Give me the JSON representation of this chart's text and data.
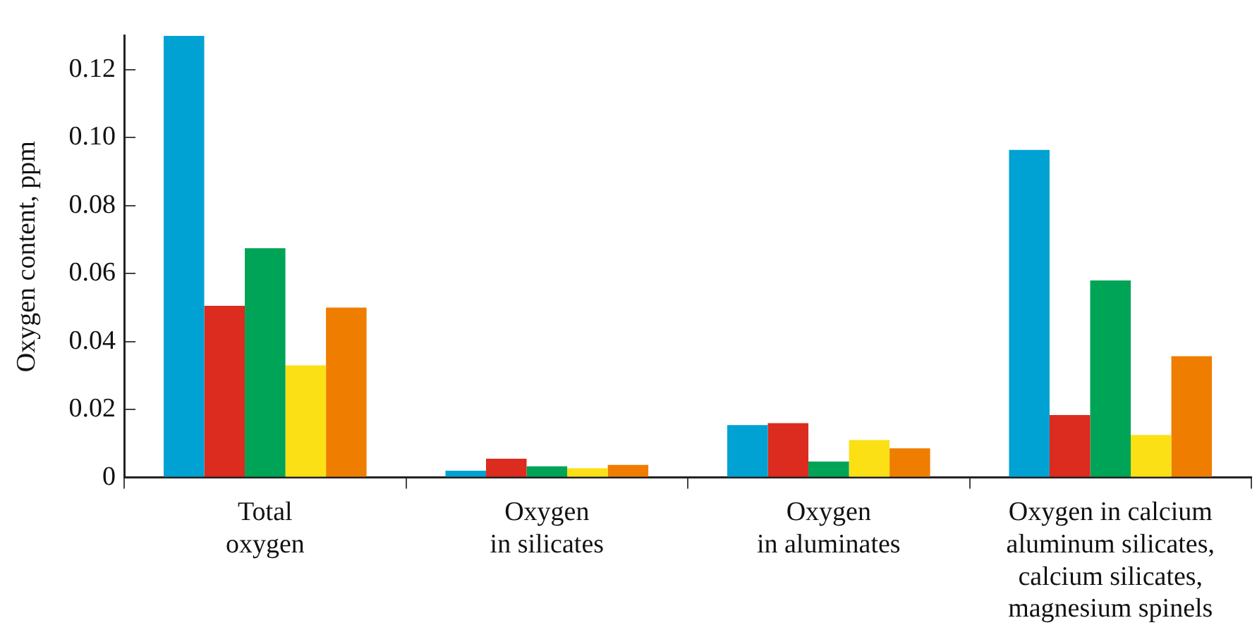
{
  "chart_data": {
    "type": "bar",
    "ylabel": "Oxygen content, ppm",
    "categories": [
      "Total\noxygen",
      "Oxygen\nin silicates",
      "Oxygen\nin aluminates",
      "Oxygen in calcium\naluminum silicates,\ncalcium silicates,\nmagnesium spinels"
    ],
    "series": [
      {
        "color": "#00a2d3",
        "values": [
          0.13,
          0.002,
          0.0154,
          0.0964
        ]
      },
      {
        "color": "#dc2b1f",
        "values": [
          0.0505,
          0.0055,
          0.016,
          0.0184
        ]
      },
      {
        "color": "#00a456",
        "values": [
          0.0675,
          0.0033,
          0.0047,
          0.058
        ]
      },
      {
        "color": "#fbe016",
        "values": [
          0.033,
          0.0027,
          0.011,
          0.0125
        ]
      },
      {
        "color": "#ef7d00",
        "values": [
          0.05,
          0.0037,
          0.0086,
          0.0357
        ]
      }
    ],
    "ylim": [
      0,
      0.13
    ],
    "yticks": [
      0,
      0.02,
      0.04,
      0.06,
      0.08,
      {
        "value": 0.1,
        "label": "0.10"
      },
      0.12
    ],
    "grid": false,
    "legend": false
  }
}
